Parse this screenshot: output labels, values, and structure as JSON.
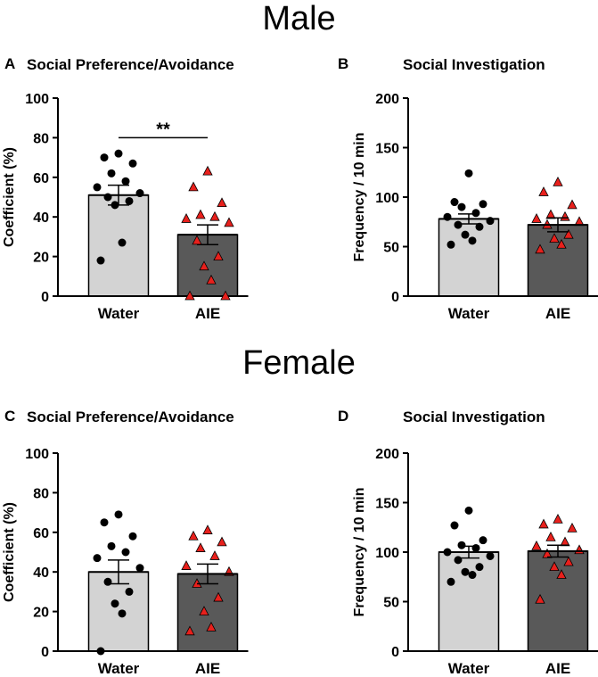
{
  "sections": {
    "male": "Male",
    "female": "Female"
  },
  "colors": {
    "water_bar": "#d3d3d3",
    "aie_bar": "#595959",
    "water_point": "#000000",
    "aie_point": "#e8201c"
  },
  "chart_data": [
    {
      "panel": "A",
      "title": "Social Preference/Avoidance",
      "type": "bar",
      "ylabel": "Coefficient (%)",
      "ylim": [
        0,
        100
      ],
      "yticks": [
        "0",
        "20",
        "40",
        "60",
        "80",
        "100"
      ],
      "categories": [
        "Water",
        "AIE"
      ],
      "means": [
        51,
        31
      ],
      "sem": [
        5,
        5
      ],
      "significance": {
        "label": "**",
        "between": [
          0,
          1
        ],
        "y": 80
      },
      "points": [
        [
          72,
          70,
          67,
          62,
          58,
          55,
          52,
          50,
          48,
          46,
          27,
          18
        ],
        [
          63,
          55,
          47,
          41,
          40,
          39,
          37,
          28,
          20,
          15,
          8,
          0,
          0
        ]
      ]
    },
    {
      "panel": "B",
      "title": "Social Investigation",
      "type": "bar",
      "ylabel": "Frequency / 10 min",
      "ylim": [
        0,
        200
      ],
      "yticks": [
        "0",
        "50",
        "100",
        "150",
        "200"
      ],
      "categories": [
        "Water",
        "AIE"
      ],
      "means": [
        78,
        72
      ],
      "sem": [
        5,
        7
      ],
      "points": [
        [
          124,
          95,
          93,
          90,
          84,
          80,
          76,
          72,
          70,
          62,
          56,
          52
        ],
        [
          115,
          105,
          92,
          82,
          80,
          78,
          75,
          72,
          62,
          58,
          52,
          47
        ]
      ]
    },
    {
      "panel": "C",
      "title": "Social Preference/Avoidance",
      "type": "bar",
      "ylabel": "Coefficient (%)",
      "ylim": [
        0,
        100
      ],
      "yticks": [
        "0",
        "20",
        "40",
        "60",
        "80",
        "100"
      ],
      "categories": [
        "Water",
        "AIE"
      ],
      "means": [
        40,
        39
      ],
      "sem": [
        6,
        5
      ],
      "points": [
        [
          69,
          65,
          58,
          53,
          50,
          47,
          42,
          35,
          30,
          24,
          19,
          0
        ],
        [
          61,
          58,
          55,
          52,
          48,
          43,
          40,
          34,
          27,
          20,
          12,
          10
        ]
      ]
    },
    {
      "panel": "D",
      "title": "Social Investigation",
      "type": "bar",
      "ylabel": "Frequency / 10 min",
      "ylim": [
        0,
        200
      ],
      "yticks": [
        "0",
        "50",
        "100",
        "150",
        "200"
      ],
      "categories": [
        "Water",
        "AIE"
      ],
      "means": [
        100,
        101
      ],
      "sem": [
        6,
        6
      ],
      "points": [
        [
          142,
          127,
          112,
          107,
          104,
          100,
          96,
          92,
          85,
          80,
          77,
          70
        ],
        [
          133,
          128,
          124,
          115,
          110,
          106,
          102,
          98,
          90,
          85,
          77,
          52
        ]
      ]
    }
  ]
}
